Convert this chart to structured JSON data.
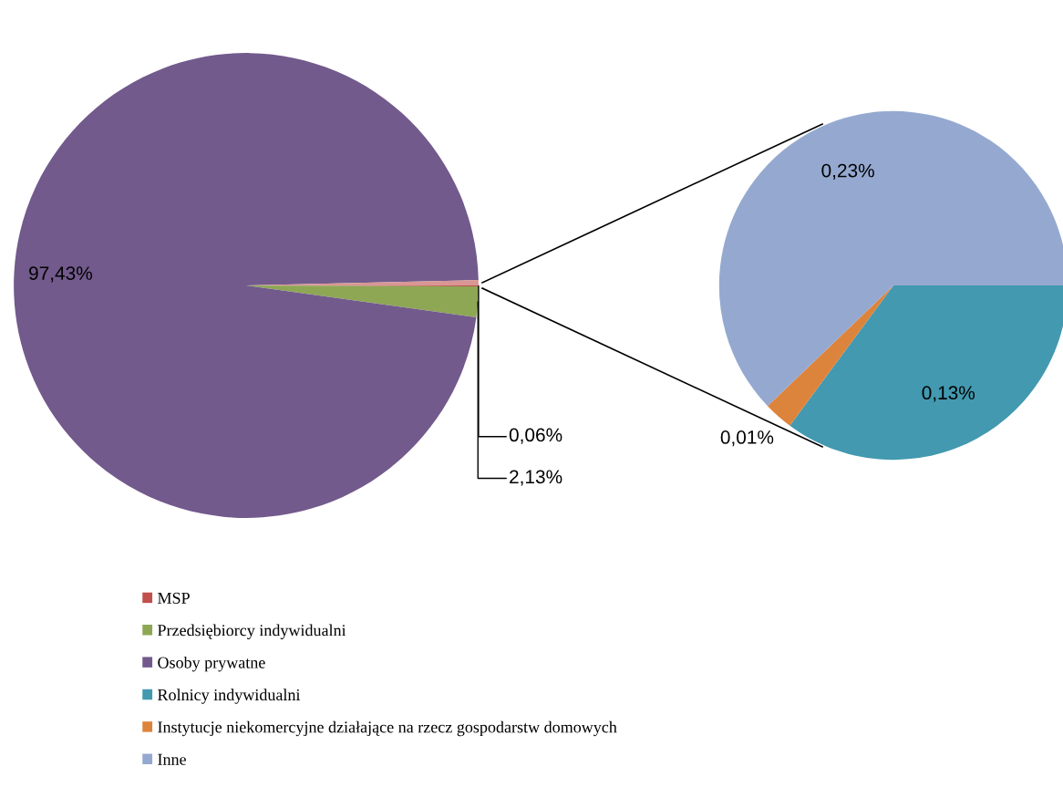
{
  "chart_data": [
    {
      "type": "pie",
      "categories": [
        "MSP",
        "Przedsiębiorcy indywidualni",
        "Osoby prywatne",
        null
      ],
      "values": [
        0.06,
        2.13,
        97.43,
        0.37
      ],
      "colors": [
        "#c0504d",
        "#8ea755",
        "#725a8c",
        "#d99694"
      ],
      "value_labels": [
        "0,06%",
        "2,13%",
        "97,43%",
        null
      ],
      "legend": "bottom"
    },
    {
      "type": "pie",
      "categories": [
        "Rolnicy indywidualni",
        "Instytucje niekomercyjne działające na rzecz gospodarstw domowych",
        "Inne"
      ],
      "values": [
        0.13,
        0.01,
        0.23
      ],
      "colors": [
        "#4299b0",
        "#dd843c",
        "#95a9d0"
      ],
      "value_labels": [
        "0,13%",
        "0,01%",
        "0,23%"
      ],
      "legend": "bottom"
    }
  ]
}
